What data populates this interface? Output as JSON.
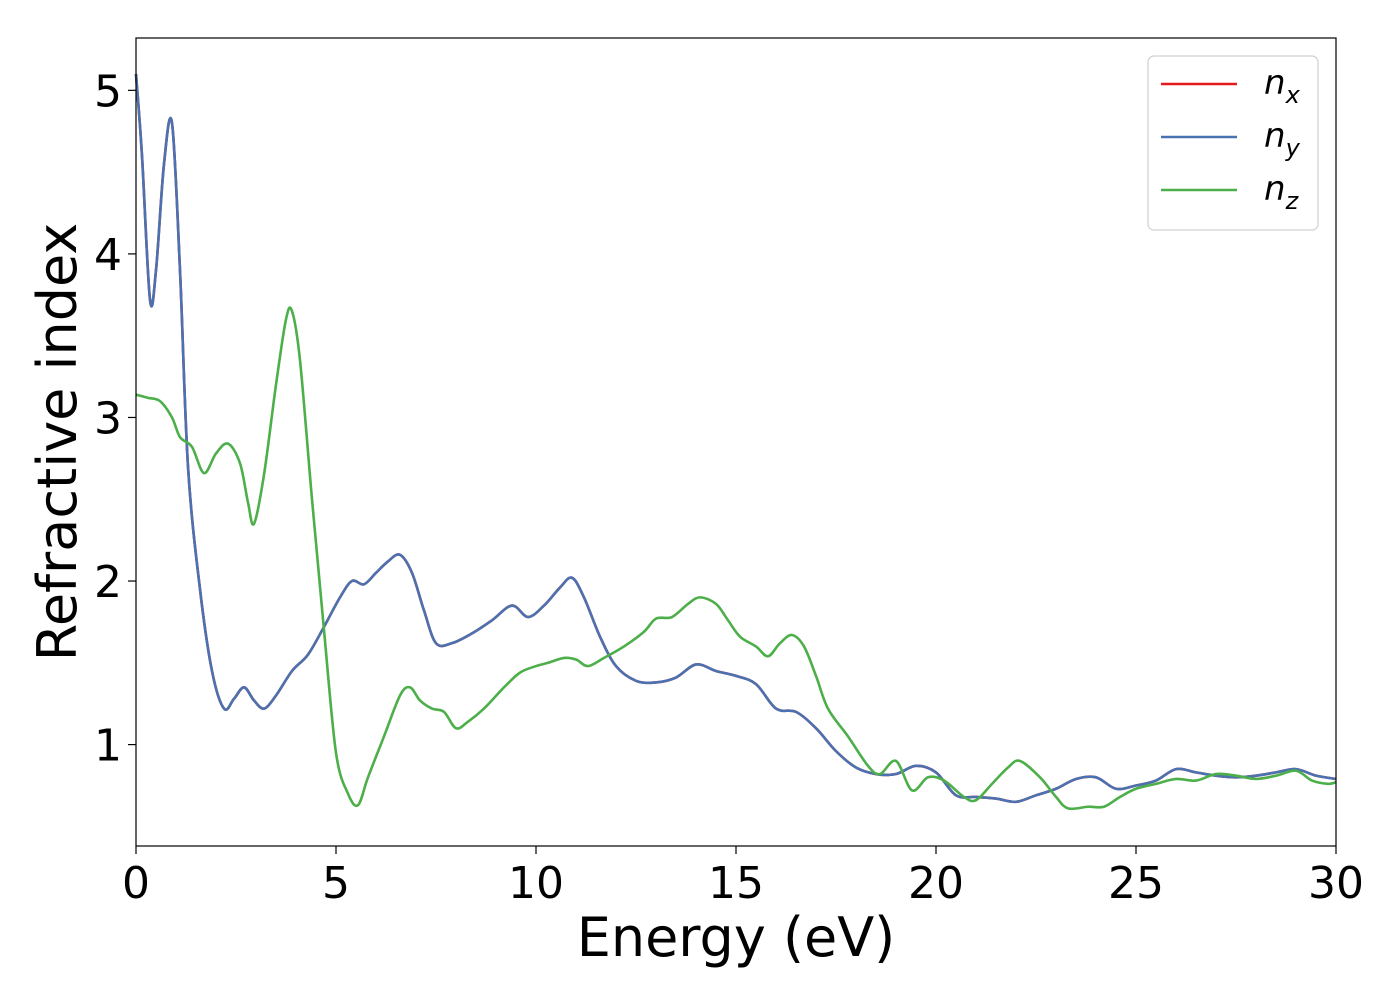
{
  "chart_data": {
    "type": "line",
    "title": "",
    "xlabel": "Energy (eV)",
    "ylabel": "Refractive index",
    "xlim": [
      0,
      30
    ],
    "ylim": [
      0.38,
      5.32
    ],
    "xticks": [
      0,
      5,
      10,
      15,
      20,
      25,
      30
    ],
    "yticks": [
      1,
      2,
      3,
      4,
      5
    ],
    "grid": false,
    "legend_position": "top-right",
    "series": [
      {
        "name": "n_x",
        "label_base": "n",
        "label_sub": "x",
        "color": "#e41a1c",
        "x": [
          0,
          0.15,
          0.35,
          0.5,
          0.7,
          0.9,
          1.1,
          1.3,
          1.6,
          1.9,
          2.2,
          2.45,
          2.7,
          2.95,
          3.2,
          3.5,
          3.9,
          4.3,
          4.7,
          5.1,
          5.4,
          5.7,
          6.0,
          6.3,
          6.6,
          6.9,
          7.2,
          7.5,
          7.9,
          8.4,
          8.9,
          9.4,
          9.8,
          10.2,
          10.6,
          10.9,
          11.2,
          11.6,
          12.0,
          12.5,
          13.0,
          13.5,
          14.0,
          14.5,
          15.0,
          15.5,
          16.0,
          16.5,
          17.0,
          17.5,
          18.0,
          18.5,
          19.0,
          19.5,
          20.0,
          20.5,
          21.0,
          21.5,
          22.0,
          22.5,
          23.0,
          23.5,
          24.0,
          24.5,
          25.0,
          25.5,
          26.0,
          26.5,
          27.0,
          27.5,
          28.0,
          28.5,
          29.0,
          29.5,
          30.0
        ],
        "y": [
          5.1,
          4.6,
          3.72,
          3.9,
          4.55,
          4.8,
          3.9,
          2.7,
          1.95,
          1.45,
          1.22,
          1.28,
          1.35,
          1.27,
          1.22,
          1.3,
          1.45,
          1.55,
          1.72,
          1.9,
          2.0,
          1.98,
          2.05,
          2.12,
          2.16,
          2.05,
          1.82,
          1.62,
          1.62,
          1.68,
          1.76,
          1.85,
          1.78,
          1.85,
          1.96,
          2.02,
          1.9,
          1.66,
          1.48,
          1.39,
          1.38,
          1.41,
          1.49,
          1.45,
          1.42,
          1.37,
          1.22,
          1.2,
          1.1,
          0.96,
          0.86,
          0.82,
          0.82,
          0.87,
          0.83,
          0.69,
          0.68,
          0.67,
          0.65,
          0.69,
          0.73,
          0.79,
          0.8,
          0.73,
          0.75,
          0.78,
          0.85,
          0.83,
          0.81,
          0.8,
          0.81,
          0.83,
          0.85,
          0.81,
          0.79
        ]
      },
      {
        "name": "n_y",
        "label_base": "n",
        "label_sub": "y",
        "color": "#4a72b0",
        "x": [
          0,
          0.15,
          0.35,
          0.5,
          0.7,
          0.9,
          1.1,
          1.3,
          1.6,
          1.9,
          2.2,
          2.45,
          2.7,
          2.95,
          3.2,
          3.5,
          3.9,
          4.3,
          4.7,
          5.1,
          5.4,
          5.7,
          6.0,
          6.3,
          6.6,
          6.9,
          7.2,
          7.5,
          7.9,
          8.4,
          8.9,
          9.4,
          9.8,
          10.2,
          10.6,
          10.9,
          11.2,
          11.6,
          12.0,
          12.5,
          13.0,
          13.5,
          14.0,
          14.5,
          15.0,
          15.5,
          16.0,
          16.5,
          17.0,
          17.5,
          18.0,
          18.5,
          19.0,
          19.5,
          20.0,
          20.5,
          21.0,
          21.5,
          22.0,
          22.5,
          23.0,
          23.5,
          24.0,
          24.5,
          25.0,
          25.5,
          26.0,
          26.5,
          27.0,
          27.5,
          28.0,
          28.5,
          29.0,
          29.5,
          30.0
        ],
        "y": [
          5.1,
          4.6,
          3.72,
          3.9,
          4.55,
          4.8,
          3.9,
          2.7,
          1.95,
          1.45,
          1.22,
          1.28,
          1.35,
          1.27,
          1.22,
          1.3,
          1.45,
          1.55,
          1.72,
          1.9,
          2.0,
          1.98,
          2.05,
          2.12,
          2.16,
          2.05,
          1.82,
          1.62,
          1.62,
          1.68,
          1.76,
          1.85,
          1.78,
          1.85,
          1.96,
          2.02,
          1.9,
          1.66,
          1.48,
          1.39,
          1.38,
          1.41,
          1.49,
          1.45,
          1.42,
          1.37,
          1.22,
          1.2,
          1.1,
          0.96,
          0.86,
          0.82,
          0.82,
          0.87,
          0.83,
          0.69,
          0.68,
          0.67,
          0.65,
          0.69,
          0.73,
          0.79,
          0.8,
          0.73,
          0.75,
          0.78,
          0.85,
          0.83,
          0.81,
          0.8,
          0.81,
          0.83,
          0.85,
          0.81,
          0.79
        ]
      },
      {
        "name": "n_z",
        "label_base": "n",
        "label_sub": "z",
        "color": "#4daf4a",
        "x": [
          0,
          0.3,
          0.6,
          0.9,
          1.1,
          1.4,
          1.7,
          2.0,
          2.3,
          2.6,
          2.8,
          2.95,
          3.2,
          3.5,
          3.75,
          3.9,
          4.1,
          4.4,
          4.7,
          5.0,
          5.3,
          5.55,
          5.8,
          6.2,
          6.6,
          6.85,
          7.1,
          7.4,
          7.7,
          8.0,
          8.3,
          8.7,
          9.2,
          9.6,
          10.0,
          10.3,
          10.7,
          11.0,
          11.3,
          11.7,
          12.2,
          12.7,
          13.0,
          13.4,
          13.8,
          14.1,
          14.5,
          14.8,
          15.1,
          15.5,
          15.8,
          16.1,
          16.4,
          16.7,
          17.0,
          17.3,
          17.8,
          18.3,
          18.6,
          19.0,
          19.4,
          19.8,
          20.2,
          20.7,
          21.0,
          21.4,
          21.8,
          22.1,
          22.6,
          23.0,
          23.3,
          23.8,
          24.2,
          24.6,
          25.0,
          25.5,
          26.0,
          26.5,
          27.0,
          27.5,
          28.0,
          28.5,
          29.0,
          29.4,
          29.8,
          30.0
        ],
        "y": [
          3.14,
          3.12,
          3.1,
          3.0,
          2.88,
          2.82,
          2.66,
          2.78,
          2.84,
          2.72,
          2.48,
          2.35,
          2.65,
          3.2,
          3.6,
          3.65,
          3.35,
          2.5,
          1.7,
          0.95,
          0.7,
          0.63,
          0.8,
          1.05,
          1.3,
          1.35,
          1.27,
          1.22,
          1.2,
          1.1,
          1.14,
          1.22,
          1.35,
          1.44,
          1.48,
          1.5,
          1.53,
          1.52,
          1.48,
          1.53,
          1.6,
          1.69,
          1.77,
          1.78,
          1.86,
          1.9,
          1.86,
          1.76,
          1.66,
          1.6,
          1.54,
          1.62,
          1.67,
          1.6,
          1.42,
          1.22,
          1.05,
          0.87,
          0.82,
          0.9,
          0.72,
          0.8,
          0.78,
          0.68,
          0.66,
          0.76,
          0.86,
          0.9,
          0.8,
          0.68,
          0.61,
          0.62,
          0.62,
          0.68,
          0.73,
          0.76,
          0.79,
          0.78,
          0.82,
          0.81,
          0.79,
          0.81,
          0.84,
          0.78,
          0.76,
          0.77
        ]
      }
    ]
  }
}
